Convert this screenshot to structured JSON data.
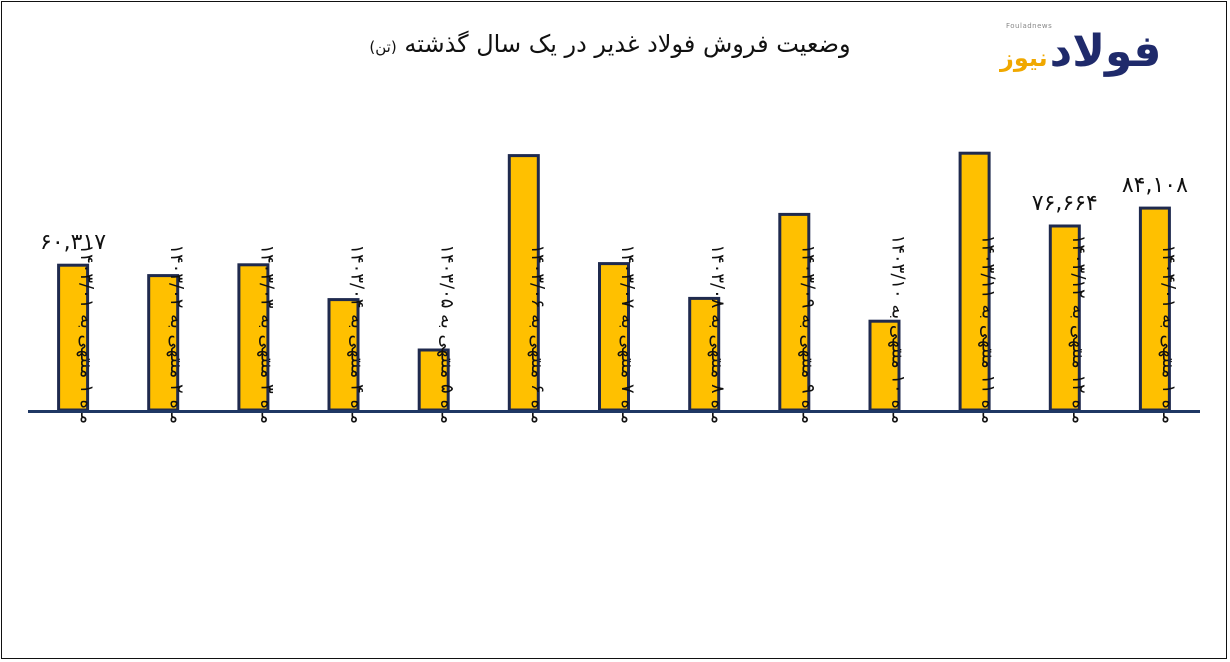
{
  "logo": {
    "small_text": "Fouladnews",
    "word_main": "فولاد",
    "word_accent": "نیوز"
  },
  "colors": {
    "bar_fill": "#FFC000",
    "bar_stroke": "#1F2A4E",
    "axis": "#1F3864",
    "logo_blue": "#1F2A6B",
    "logo_orange": "#F0A800"
  },
  "chart_data": {
    "type": "bar",
    "title": "وضعیت فروش فولاد غدیر در یک سال گذشته",
    "title_unit": "(تن)",
    "xlabel": "",
    "ylabel": "",
    "ylim": [
      0,
      150000
    ],
    "grid": false,
    "legend": "none",
    "categories": [
      "ماه ۱ منتهی به ۱۴۰۳/۰۱",
      "ماه ۲ منتهی به ۱۴۰۳/۰۲",
      "ماه ۳ منتهی به ۱۴۰۳/۰۳",
      "ماه ۴ منتهی به ۱۴۰۳/۰۴",
      "ماه ۵ منتهی به ۱۴۰۳/۰۵",
      "ماه ۶ منتهی به ۱۴۰۳/۰۶",
      "ماه ۷ منتهی به ۱۴۰۳/۰۷",
      "ماه ۸ منتهی به ۱۴۰۳/۰۸",
      "ماه ۹ منتهی به ۱۴۰۳/۰۹",
      "ماه ۱۰ منتهی به ۱۴۰۳/۱۰",
      "ماه ۱۱ منتهی به ۱۴۰۳/۱۱",
      "ماه ۱۲ منتهی به ۱۴۰۳/۱۲",
      "ماه ۱ منتهی به ۱۴۰۴/۰۱"
    ],
    "values": [
      60317,
      56000,
      60500,
      46000,
      25000,
      106000,
      61000,
      46500,
      81500,
      37000,
      107000,
      76664,
      84108
    ],
    "data_labels": [
      "۶۰,۳۱۷",
      "",
      "",
      "",
      "",
      "",
      "",
      "",
      "",
      "",
      "",
      "۷۶,۶۶۴",
      "۸۴,۱۰۸"
    ]
  }
}
